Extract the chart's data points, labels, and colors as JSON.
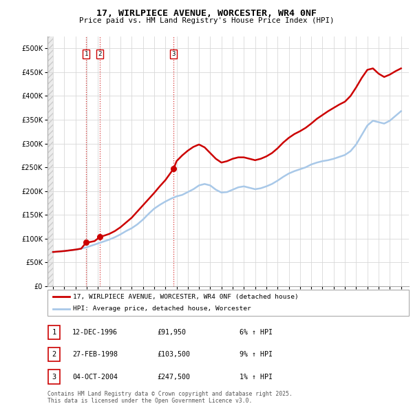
{
  "title_line1": "17, WIRLPIECE AVENUE, WORCESTER, WR4 0NF",
  "title_line2": "Price paid vs. HM Land Registry's House Price Index (HPI)",
  "hpi_color": "#a8c8e8",
  "price_color": "#cc0000",
  "marker_color": "#cc0000",
  "grid_color": "#d8d8d8",
  "ylim": [
    0,
    525000
  ],
  "yticks": [
    0,
    50000,
    100000,
    150000,
    200000,
    250000,
    300000,
    350000,
    400000,
    450000,
    500000
  ],
  "ytick_labels": [
    "£0",
    "£50K",
    "£100K",
    "£150K",
    "£200K",
    "£250K",
    "£300K",
    "£350K",
    "£400K",
    "£450K",
    "£500K"
  ],
  "xlim_start": 1993.5,
  "xlim_end": 2025.7,
  "purchase_dates": [
    1996.95,
    1998.16,
    2004.75
  ],
  "purchase_prices": [
    91950,
    103500,
    247500
  ],
  "purchase_labels": [
    "1",
    "2",
    "3"
  ],
  "legend_line1": "17, WIRLPIECE AVENUE, WORCESTER, WR4 0NF (detached house)",
  "legend_line2": "HPI: Average price, detached house, Worcester",
  "table_rows": [
    {
      "num": "1",
      "date": "12-DEC-1996",
      "price": "£91,950",
      "hpi": "6% ↑ HPI"
    },
    {
      "num": "2",
      "date": "27-FEB-1998",
      "price": "£103,500",
      "hpi": "9% ↑ HPI"
    },
    {
      "num": "3",
      "date": "04-OCT-2004",
      "price": "£247,500",
      "hpi": "1% ↑ HPI"
    }
  ],
  "footnote": "Contains HM Land Registry data © Crown copyright and database right 2025.\nThis data is licensed under the Open Government Licence v3.0.",
  "hpi_data": [
    [
      1994.0,
      72000
    ],
    [
      1994.5,
      73000
    ],
    [
      1995.0,
      74000
    ],
    [
      1995.5,
      75500
    ],
    [
      1996.0,
      77000
    ],
    [
      1996.5,
      79000
    ],
    [
      1997.0,
      82000
    ],
    [
      1997.5,
      86000
    ],
    [
      1998.0,
      90000
    ],
    [
      1998.5,
      94000
    ],
    [
      1999.0,
      98000
    ],
    [
      1999.5,
      103000
    ],
    [
      2000.0,
      109000
    ],
    [
      2000.5,
      116000
    ],
    [
      2001.0,
      122000
    ],
    [
      2001.5,
      130000
    ],
    [
      2002.0,
      140000
    ],
    [
      2002.5,
      152000
    ],
    [
      2003.0,
      163000
    ],
    [
      2003.5,
      171000
    ],
    [
      2004.0,
      178000
    ],
    [
      2004.5,
      184000
    ],
    [
      2005.0,
      189000
    ],
    [
      2005.5,
      192000
    ],
    [
      2006.0,
      198000
    ],
    [
      2006.5,
      204000
    ],
    [
      2007.0,
      212000
    ],
    [
      2007.5,
      215000
    ],
    [
      2008.0,
      212000
    ],
    [
      2008.5,
      203000
    ],
    [
      2009.0,
      197000
    ],
    [
      2009.5,
      198000
    ],
    [
      2010.0,
      203000
    ],
    [
      2010.5,
      208000
    ],
    [
      2011.0,
      210000
    ],
    [
      2011.5,
      207000
    ],
    [
      2012.0,
      204000
    ],
    [
      2012.5,
      206000
    ],
    [
      2013.0,
      210000
    ],
    [
      2013.5,
      215000
    ],
    [
      2014.0,
      222000
    ],
    [
      2014.5,
      230000
    ],
    [
      2015.0,
      237000
    ],
    [
      2015.5,
      242000
    ],
    [
      2016.0,
      246000
    ],
    [
      2016.5,
      250000
    ],
    [
      2017.0,
      256000
    ],
    [
      2017.5,
      260000
    ],
    [
      2018.0,
      263000
    ],
    [
      2018.5,
      265000
    ],
    [
      2019.0,
      268000
    ],
    [
      2019.5,
      272000
    ],
    [
      2020.0,
      276000
    ],
    [
      2020.5,
      284000
    ],
    [
      2021.0,
      298000
    ],
    [
      2021.5,
      318000
    ],
    [
      2022.0,
      338000
    ],
    [
      2022.5,
      348000
    ],
    [
      2023.0,
      345000
    ],
    [
      2023.5,
      342000
    ],
    [
      2024.0,
      348000
    ],
    [
      2024.5,
      358000
    ],
    [
      2025.0,
      368000
    ]
  ],
  "price_data": [
    [
      1994.0,
      72000
    ],
    [
      1994.5,
      73000
    ],
    [
      1995.0,
      74000
    ],
    [
      1995.5,
      75500
    ],
    [
      1996.0,
      77000
    ],
    [
      1996.5,
      79000
    ],
    [
      1996.95,
      91950
    ],
    [
      1997.3,
      93000
    ],
    [
      1997.7,
      95000
    ],
    [
      1998.16,
      103500
    ],
    [
      1998.5,
      106000
    ],
    [
      1999.0,
      110000
    ],
    [
      1999.5,
      116000
    ],
    [
      2000.0,
      124000
    ],
    [
      2000.5,
      134000
    ],
    [
      2001.0,
      144000
    ],
    [
      2001.5,
      157000
    ],
    [
      2002.0,
      170000
    ],
    [
      2002.5,
      183000
    ],
    [
      2003.0,
      196000
    ],
    [
      2003.5,
      210000
    ],
    [
      2004.0,
      223000
    ],
    [
      2004.75,
      247500
    ],
    [
      2005.0,
      263000
    ],
    [
      2005.5,
      275000
    ],
    [
      2006.0,
      285000
    ],
    [
      2006.5,
      293000
    ],
    [
      2007.0,
      298000
    ],
    [
      2007.5,
      292000
    ],
    [
      2008.0,
      280000
    ],
    [
      2008.5,
      268000
    ],
    [
      2009.0,
      260000
    ],
    [
      2009.5,
      263000
    ],
    [
      2010.0,
      268000
    ],
    [
      2010.5,
      271000
    ],
    [
      2011.0,
      271000
    ],
    [
      2011.5,
      268000
    ],
    [
      2012.0,
      265000
    ],
    [
      2012.5,
      268000
    ],
    [
      2013.0,
      273000
    ],
    [
      2013.5,
      280000
    ],
    [
      2014.0,
      290000
    ],
    [
      2014.5,
      302000
    ],
    [
      2015.0,
      312000
    ],
    [
      2015.5,
      320000
    ],
    [
      2016.0,
      326000
    ],
    [
      2016.5,
      333000
    ],
    [
      2017.0,
      342000
    ],
    [
      2017.5,
      352000
    ],
    [
      2018.0,
      360000
    ],
    [
      2018.5,
      368000
    ],
    [
      2019.0,
      375000
    ],
    [
      2019.5,
      382000
    ],
    [
      2020.0,
      388000
    ],
    [
      2020.5,
      400000
    ],
    [
      2021.0,
      418000
    ],
    [
      2021.5,
      438000
    ],
    [
      2022.0,
      455000
    ],
    [
      2022.5,
      458000
    ],
    [
      2023.0,
      447000
    ],
    [
      2023.5,
      440000
    ],
    [
      2024.0,
      445000
    ],
    [
      2024.5,
      452000
    ],
    [
      2025.0,
      458000
    ]
  ]
}
